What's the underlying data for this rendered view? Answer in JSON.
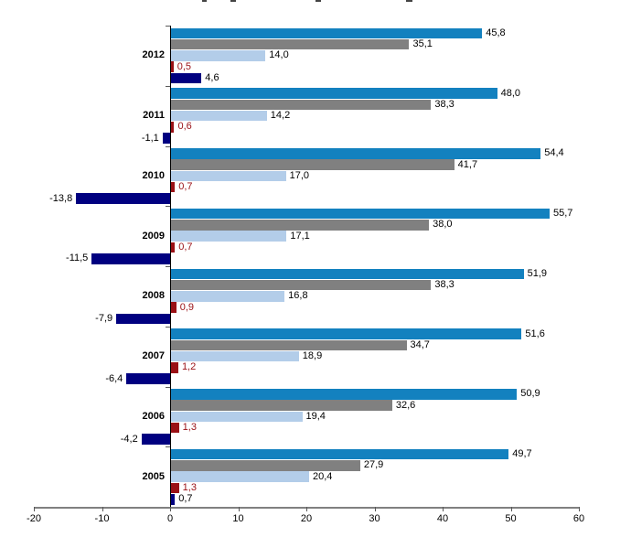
{
  "page": {
    "background": "#FFFFFF",
    "note_title": "chart title cropped off at top edge of screenshot"
  },
  "chart_data": {
    "type": "bar",
    "orientation": "horizontal",
    "categories": [
      "2012",
      "2011",
      "2010",
      "2009",
      "2008",
      "2007",
      "2006",
      "2005"
    ],
    "series": [
      {
        "name": "series-1-blue",
        "color": "#1381BF",
        "values": [
          45.8,
          48.0,
          54.4,
          55.7,
          51.9,
          51.6,
          50.9,
          49.7
        ],
        "labels": [
          "45,8",
          "48,0",
          "54,4",
          "55,7",
          "51,9",
          "51,6",
          "50,9",
          "49,7"
        ]
      },
      {
        "name": "series-2-gray",
        "color": "#808080",
        "values": [
          35.1,
          38.3,
          41.7,
          38.0,
          38.3,
          34.7,
          32.6,
          27.9
        ],
        "labels": [
          "35,1",
          "38,3",
          "41,7",
          "38,0",
          "38,3",
          "34,7",
          "32,6",
          "27,9"
        ]
      },
      {
        "name": "series-3-lightblue",
        "color": "#B3CDE9",
        "values": [
          14.0,
          14.2,
          17.0,
          17.1,
          16.8,
          18.9,
          19.4,
          20.4
        ],
        "labels": [
          "14,0",
          "14,2",
          "17,0",
          "17,1",
          "16,8",
          "18,9",
          "19,4",
          "20,4"
        ]
      },
      {
        "name": "series-4-darkred",
        "color": "#9A1015",
        "values": [
          0.5,
          0.6,
          0.7,
          0.7,
          0.9,
          1.2,
          1.3,
          1.3
        ],
        "labels": [
          "0,5",
          "0,6",
          "0,7",
          "0,7",
          "0,9",
          "1,2",
          "1,3",
          "1,3"
        ]
      },
      {
        "name": "series-5-navy",
        "color": "#000080",
        "values": [
          4.6,
          -1.1,
          -13.8,
          -11.5,
          -7.9,
          -6.4,
          -4.2,
          0.7
        ],
        "labels": [
          "4,6",
          "-1,1",
          "-13,8",
          "-11,5",
          "-7,9",
          "-6,4",
          "-4,2",
          "0,7"
        ]
      }
    ],
    "value_label_format": {
      "decimals": 1,
      "decimal_separator": ","
    },
    "value_label_colors": {
      "default": "#000000",
      "series-4-darkred": "#9A1015"
    },
    "xlim": [
      -20,
      60
    ],
    "xticks": [
      -20,
      -10,
      0,
      10,
      20,
      30,
      40,
      50,
      60
    ],
    "xtick_labels": [
      "-20",
      "-10",
      "0",
      "10",
      "20",
      "30",
      "40",
      "50",
      "60"
    ],
    "grid": false,
    "legend": false,
    "axis_colors": {
      "x_axis": "#808080",
      "y_axis": "#000000",
      "tick": "#595959"
    }
  }
}
